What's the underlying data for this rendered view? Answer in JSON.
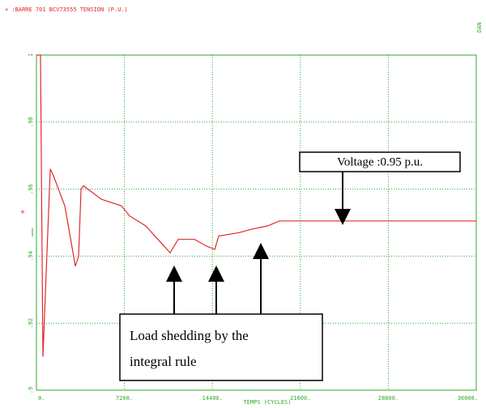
{
  "chart_data": {
    "type": "line",
    "x_label": "TEMPS (CYCLES)",
    "corner_label": "DAN",
    "annotations": [
      "Voltage :0.95 p.u.",
      "Load shedding by the",
      "integral rule"
    ],
    "series": [
      {
        "name": "+ :BARRE 701 BCV73555 TENSION (P.U.)",
        "color": "#e0282a",
        "x": [
          0,
          330,
          530,
          1130,
          1390,
          2320,
          2850,
          3180,
          3450,
          3650,
          3850,
          5300,
          6960,
          7620,
          8950,
          9940,
          10940,
          11600,
          12930,
          13920,
          14590,
          14920,
          16570,
          17570,
          18900,
          19890,
          36000
        ],
        "values": [
          1.0,
          1.0,
          0.91,
          0.966,
          0.964,
          0.955,
          0.944,
          0.937,
          0.94,
          0.96,
          0.961,
          0.957,
          0.955,
          0.952,
          0.949,
          0.945,
          0.941,
          0.945,
          0.945,
          0.943,
          0.942,
          0.946,
          0.947,
          0.948,
          0.949,
          0.9505,
          0.9505
        ]
      }
    ],
    "xlim": [
      0,
      36000
    ],
    "xticks": [
      {
        "value": 0,
        "label": "0."
      },
      {
        "value": 7200,
        "label": "7200."
      },
      {
        "value": 14400,
        "label": "14400."
      },
      {
        "value": 21600,
        "label": "21600."
      },
      {
        "value": 28800,
        "label": "28800."
      },
      {
        "value": 36000,
        "label": "36000."
      }
    ],
    "ylim": [
      0.9,
      1.0
    ],
    "yticks": [
      {
        "value": 0.9,
        "label": ".9"
      },
      {
        "value": 0.92,
        "label": ".92"
      },
      {
        "value": 0.94,
        "label": ".94"
      },
      {
        "value": 0.96,
        "label": ".96"
      },
      {
        "value": 0.98,
        "label": ".98"
      },
      1
    ],
    "grid": true,
    "grid_color": "#2eaa2e"
  }
}
